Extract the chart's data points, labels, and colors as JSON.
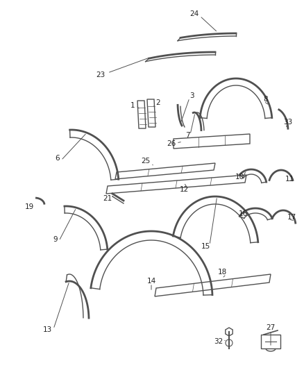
{
  "bg_color": "#ffffff",
  "line_color": "#505050",
  "lw_outer": 2.0,
  "lw_inner": 1.0,
  "lw_leader": 0.7,
  "fs": 7.5
}
